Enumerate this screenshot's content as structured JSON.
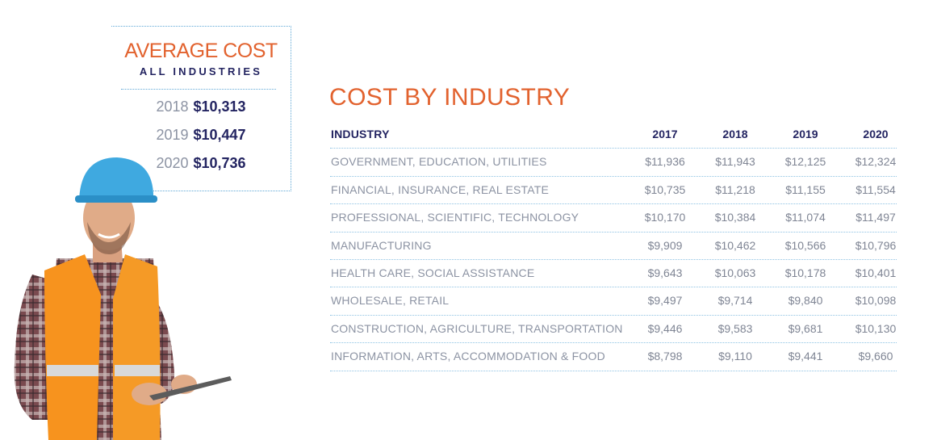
{
  "average_cost": {
    "title": "AVERAGE COST",
    "subtitle": "ALL INDUSTRIES",
    "rows": [
      {
        "year": "2018",
        "value": "$10,313"
      },
      {
        "year": "2019",
        "value": "$10,447"
      },
      {
        "year": "2020",
        "value": "$10,736"
      }
    ]
  },
  "colors": {
    "accent_orange": "#e2622e",
    "navy": "#232461",
    "muted_text": "#8c93a3",
    "divider_blue": "#8fc3e3"
  },
  "chart_data": {
    "type": "table",
    "title": "COST BY INDUSTRY",
    "columns": [
      "INDUSTRY",
      "2017",
      "2018",
      "2019",
      "2020"
    ],
    "rows": [
      [
        "GOVERNMENT, EDUCATION, UTILITIES",
        "$11,936",
        "$11,943",
        "$12,125",
        "$12,324"
      ],
      [
        "FINANCIAL, INSURANCE, REAL ESTATE",
        "$10,735",
        "$11,218",
        "$11,155",
        "$11,554"
      ],
      [
        "PROFESSIONAL, SCIENTIFIC, TECHNOLOGY",
        "$10,170",
        "$10,384",
        "$11,074",
        "$11,497"
      ],
      [
        "MANUFACTURING",
        "$9,909",
        "$10,462",
        "$10,566",
        "$10,796"
      ],
      [
        "HEALTH CARE, SOCIAL ASSISTANCE",
        "$9,643",
        "$10,063",
        "$10,178",
        "$10,401"
      ],
      [
        "WHOLESALE, RETAIL",
        "$9,497",
        "$9,714",
        "$9,840",
        "$10,098"
      ],
      [
        "CONSTRUCTION, AGRICULTURE, TRANSPORTATION",
        "$9,446",
        "$9,583",
        "$9,681",
        "$10,130"
      ],
      [
        "INFORMATION, ARTS, ACCOMMODATION & FOOD",
        "$8,798",
        "$9,110",
        "$9,441",
        "$9,660"
      ]
    ]
  }
}
